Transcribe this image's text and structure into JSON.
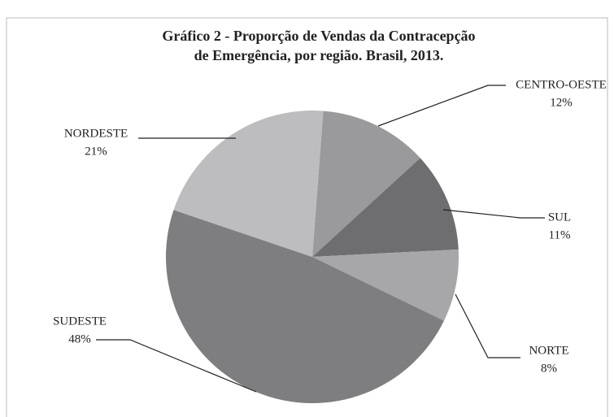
{
  "chart_data": {
    "type": "pie",
    "title": [
      "Gráfico 2 - Proporção de Vendas da Contracepção",
      "de Emergência, por região. Brasil, 2013."
    ],
    "categories": [
      "CENTRO-OESTE",
      "SUL",
      "NORTE",
      "SUDESTE",
      "NORDESTE"
    ],
    "values": [
      12,
      11,
      8,
      48,
      21
    ],
    "value_labels": [
      "12%",
      "11%",
      "8%",
      "48%",
      "21%"
    ],
    "colors": [
      "#9a9a9c",
      "#6e6e70",
      "#a7a7a9",
      "#7e7e81",
      "#bdbdbf"
    ]
  }
}
